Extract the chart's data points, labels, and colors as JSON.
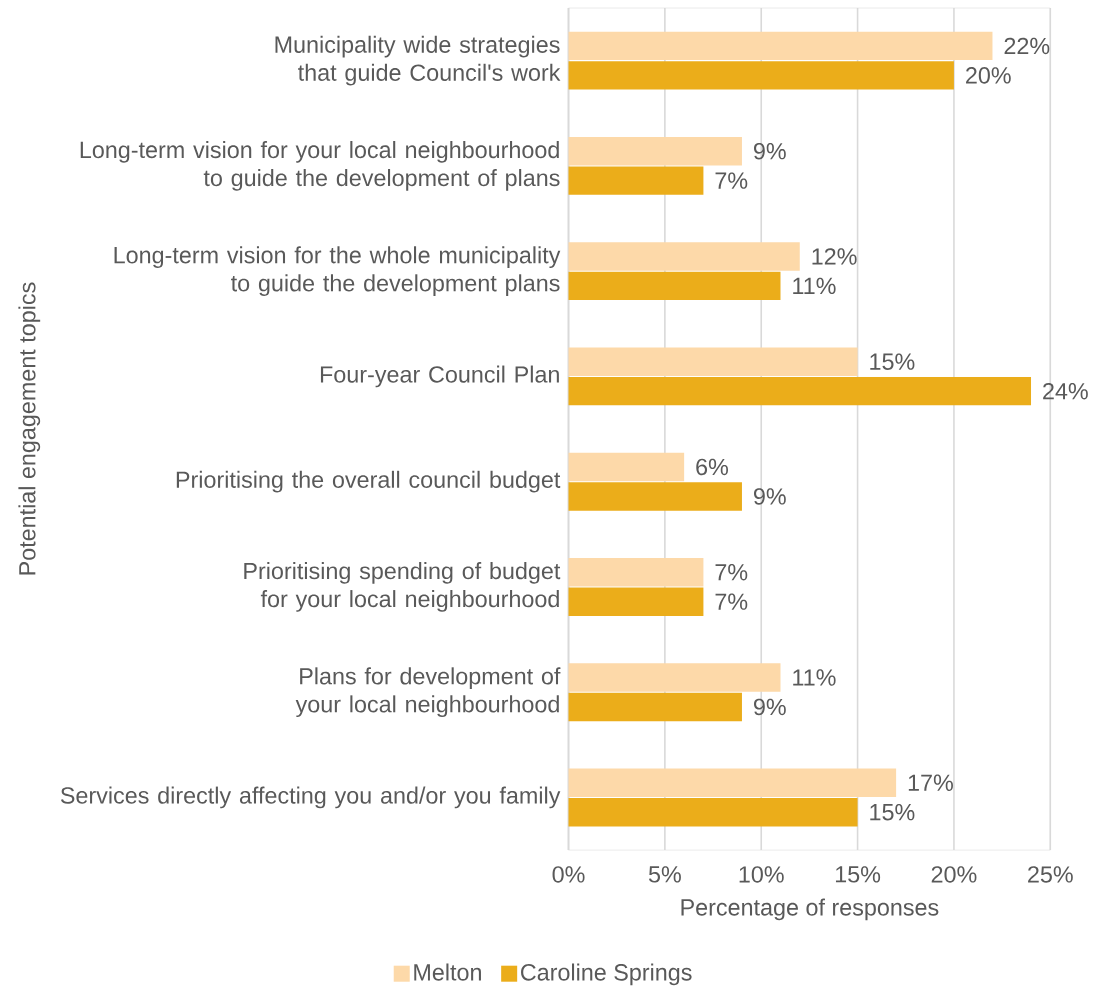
{
  "chart_data": {
    "type": "bar",
    "orientation": "horizontal",
    "categories": [
      "Municipality wide strategies that guide Council's work",
      "Long-term vision for your local neighbourhood to guide the development of plans",
      "Long-term vision for the whole municipality to guide the development plans",
      "Four-year Council Plan",
      "Prioritising the overall council budget",
      "Prioritising spending of budget for your local neighbourhood",
      "Plans for development of your local neighbourhood",
      "Services directly affecting you and/or you family"
    ],
    "series": [
      {
        "name": "Melton",
        "color": "#fdd9a9",
        "values": [
          22,
          9,
          12,
          15,
          6,
          7,
          11,
          17
        ],
        "value_labels": [
          "22%",
          "9%",
          "12%",
          "15%",
          "6%",
          "7%",
          "11%",
          "17%"
        ]
      },
      {
        "name": "Caroline Springs",
        "color": "#ebad1a",
        "values": [
          20,
          7,
          11,
          24,
          9,
          7,
          9,
          15
        ],
        "value_labels": [
          "20%",
          "7%",
          "11%",
          "24%",
          "9%",
          "7%",
          "9%",
          "15%"
        ]
      }
    ],
    "xlim": [
      0,
      25
    ],
    "xticks": [
      {
        "value": 0,
        "label": "0%"
      },
      {
        "value": 5,
        "label": "5%"
      },
      {
        "value": 10,
        "label": "10%"
      },
      {
        "value": 15,
        "label": "15%"
      },
      {
        "value": 20,
        "label": "20%"
      },
      {
        "value": 25,
        "label": "25%"
      }
    ],
    "xlabel": "Percentage of responses",
    "ylabel": "Potential engagement topics",
    "grid": "x",
    "legend": "bottom"
  }
}
